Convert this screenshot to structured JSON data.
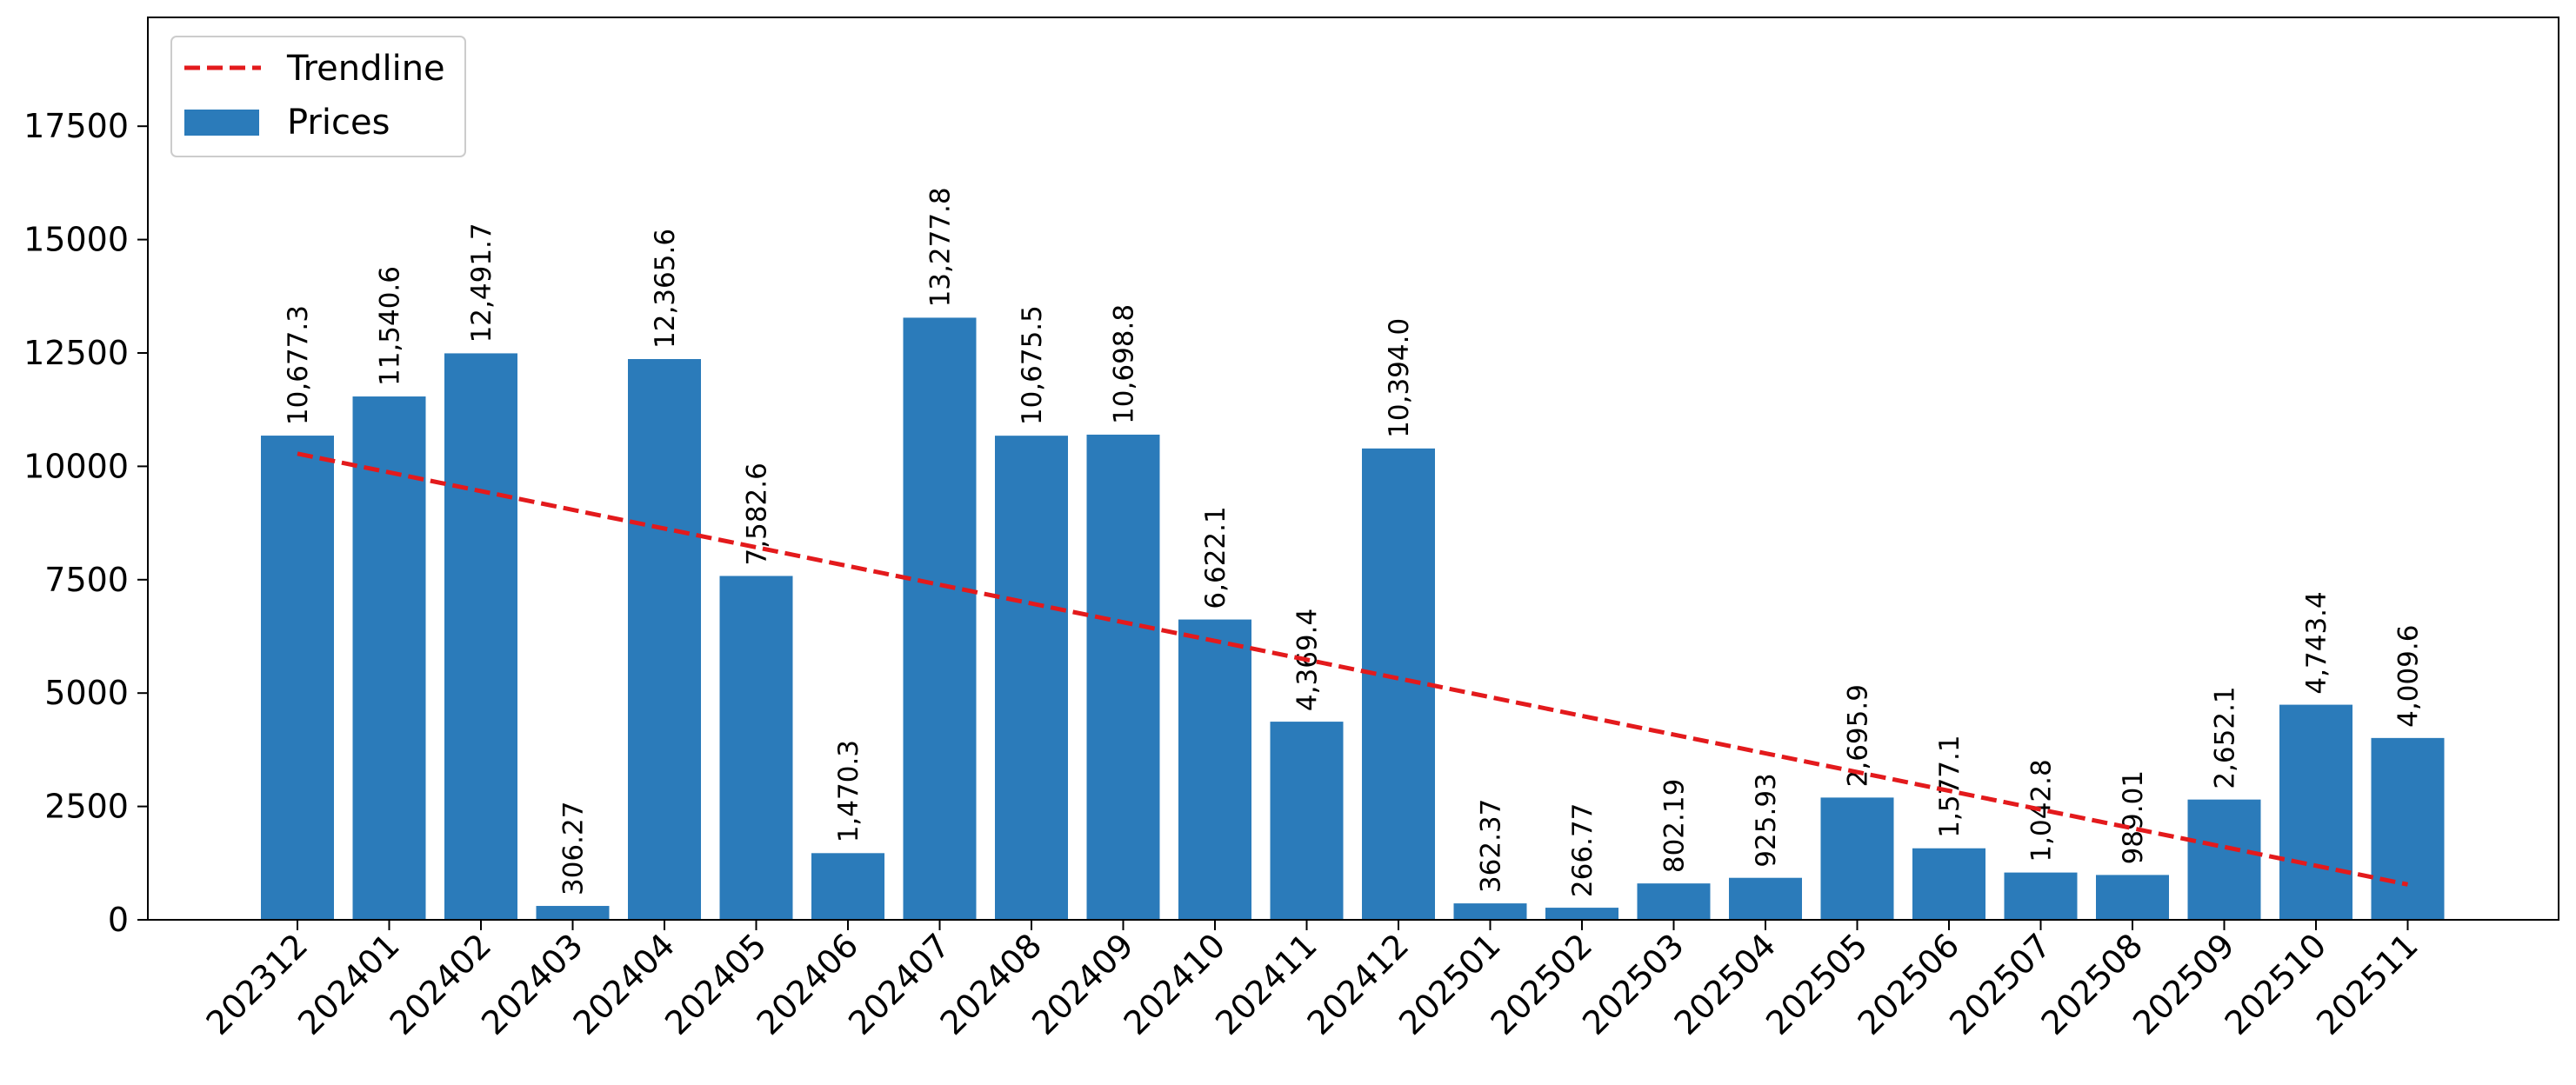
{
  "chart_data": {
    "type": "bar",
    "categories": [
      "202312",
      "202401",
      "202402",
      "202403",
      "202404",
      "202405",
      "202406",
      "202407",
      "202408",
      "202409",
      "202410",
      "202411",
      "202412",
      "202501",
      "202502",
      "202503",
      "202504",
      "202505",
      "202506",
      "202507",
      "202508",
      "202509",
      "202510",
      "202511"
    ],
    "series": [
      {
        "name": "Prices",
        "type": "bar",
        "color": "#2b7bba",
        "values": [
          10677.3,
          11540.6,
          12491.7,
          306.27,
          12365.6,
          7582.6,
          1470.3,
          13277.8,
          10675.5,
          10698.8,
          6622.1,
          4369.4,
          10394.0,
          362.37,
          266.77,
          802.19,
          925.93,
          2695.9,
          1577.1,
          1042.8,
          989.01,
          2652.1,
          4743.4,
          4009.6
        ]
      },
      {
        "name": "Trendline",
        "type": "line",
        "style": "dashed",
        "color": "#e31a1c",
        "start": 10280,
        "end": 780
      }
    ],
    "data_labels": [
      "10,677.3",
      "11,540.6",
      "12,491.7",
      "306.27",
      "12,365.6",
      "7,582.6",
      "1,470.3",
      "13,277.8",
      "10,675.5",
      "10,698.8",
      "6,622.1",
      "4,369.4",
      "10,394.0",
      "362.37",
      "266.77",
      "802.19",
      "925.93",
      "2,695.9",
      "1,577.1",
      "1,042.8",
      "989.01",
      "2,652.1",
      "4,743.4",
      "4,009.6"
    ],
    "y_ticks": [
      "0",
      "2500",
      "5000",
      "7500",
      "10000",
      "12500",
      "15000",
      "17500"
    ],
    "y_tick_values": [
      0,
      2500,
      5000,
      7500,
      10000,
      12500,
      15000,
      17500
    ],
    "ylim": [
      0,
      19900
    ],
    "title": "",
    "xlabel": "",
    "ylabel": "",
    "grid": false,
    "legend_position": "top-left",
    "legend": [
      {
        "name": "Trendline",
        "symbol": "dashed-line",
        "color": "#e31a1c"
      },
      {
        "name": "Prices",
        "symbol": "rect",
        "color": "#2b7bba"
      }
    ]
  }
}
